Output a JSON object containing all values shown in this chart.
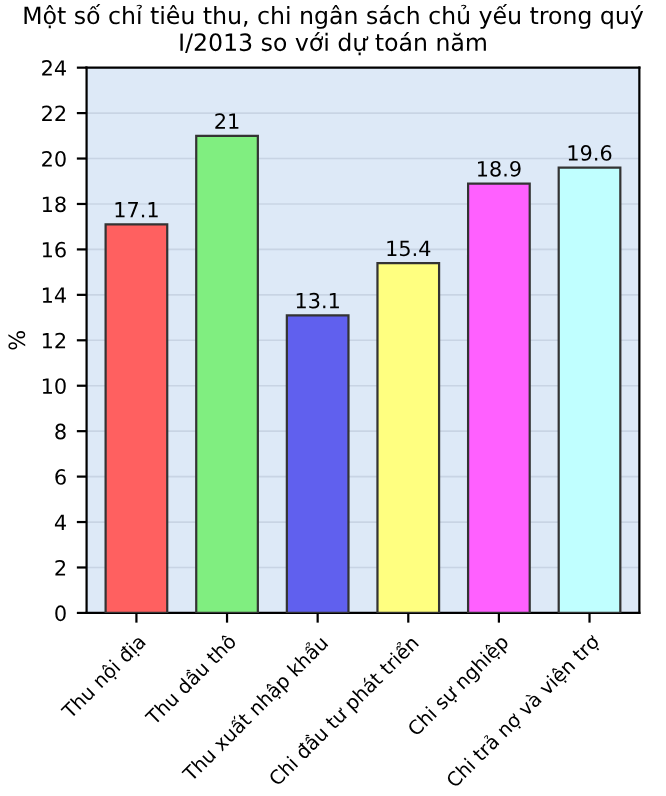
{
  "chart_data": {
    "type": "bar",
    "title": "Một số chỉ tiêu thu, chi ngân sách chủ yếu trong quý I/2013 so với dự toán năm",
    "ylabel": "%",
    "categories": [
      "Thu nội địa",
      "Thu dầu thô",
      "Thu xuất nhập khẩu",
      "Chi đầu tư phát triển",
      "Chi sự nghiệp",
      "Chi trả nợ và viện trợ"
    ],
    "values": [
      17.1,
      21,
      13.1,
      15.4,
      18.9,
      19.6
    ],
    "colors": [
      "#ff6060",
      "#80ee80",
      "#6060ee",
      "#ffff80",
      "#ff60ff",
      "#c0ffff"
    ],
    "data_labels": true,
    "ylim": [
      0,
      24
    ],
    "yticks": [
      0,
      2,
      4,
      6,
      8,
      10,
      12,
      14,
      16,
      18,
      20,
      22,
      24
    ],
    "grid": "y"
  }
}
